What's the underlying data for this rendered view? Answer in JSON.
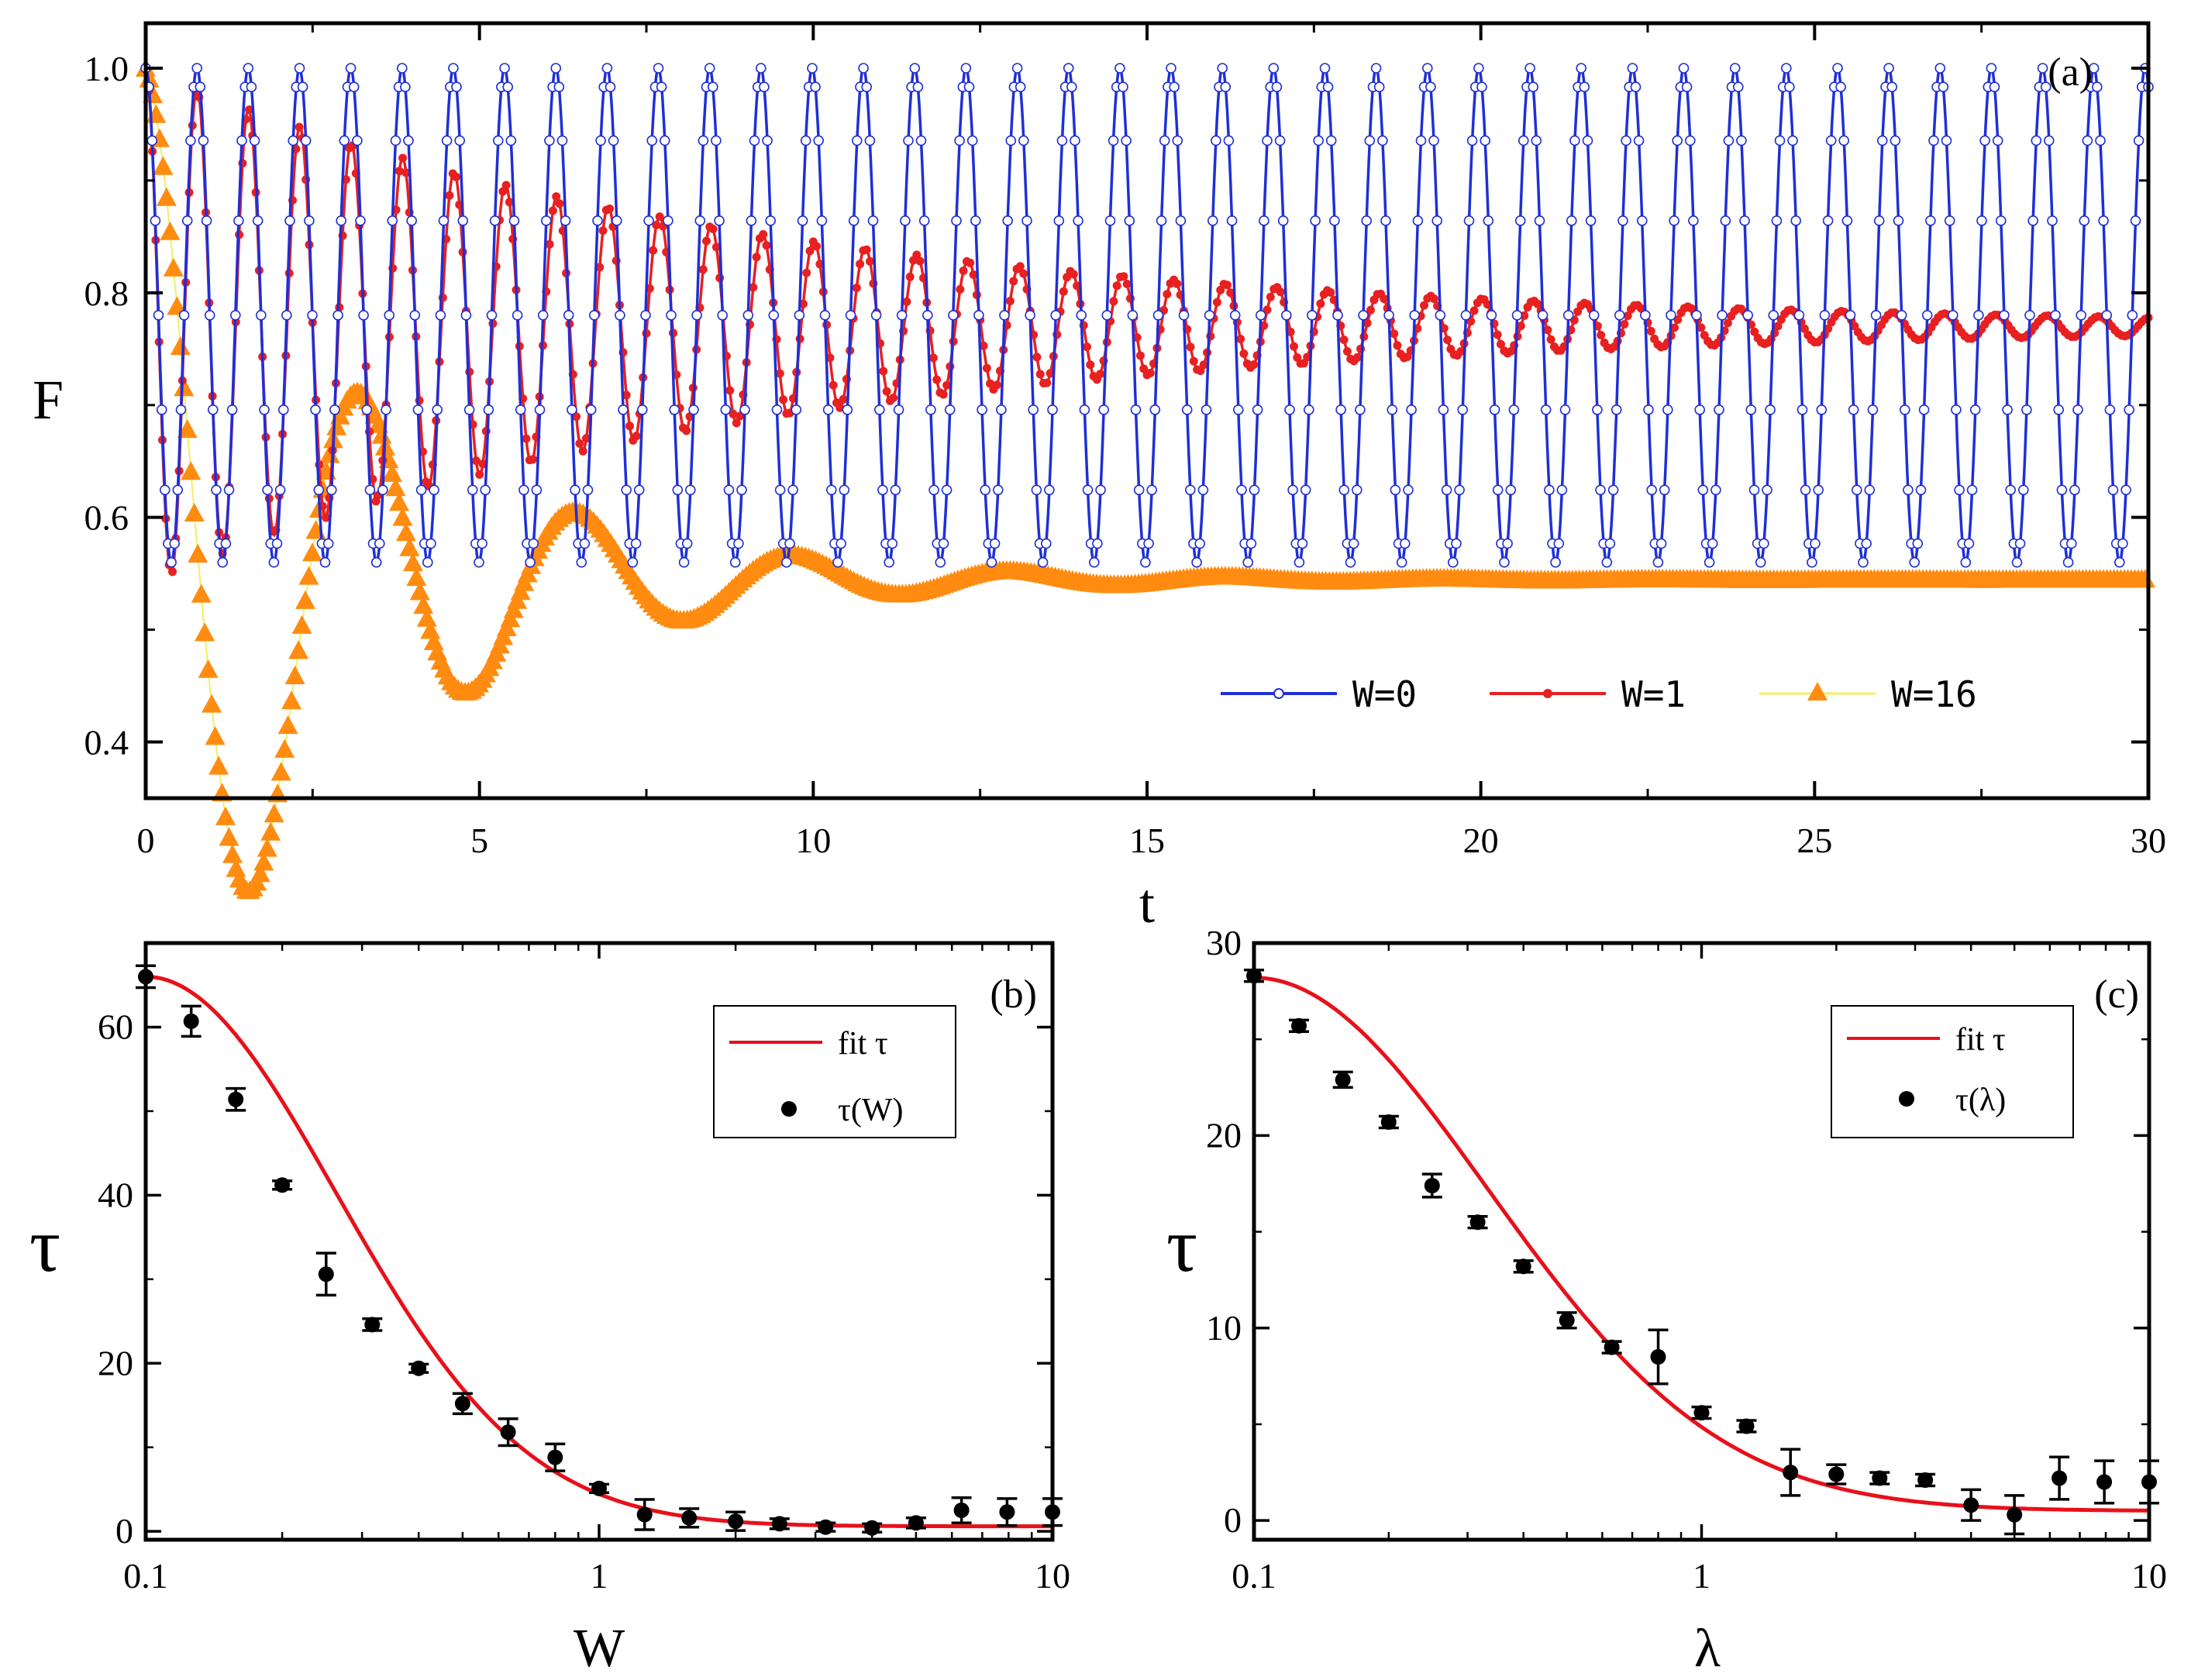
{
  "chart_data": [
    {
      "panel": "a",
      "type": "line",
      "panel_label": "(a)",
      "xlabel": "t",
      "ylabel": "F",
      "xlim": [
        0,
        30
      ],
      "ylim": [
        0.35,
        1.04
      ],
      "x_ticks": [
        0,
        5,
        10,
        15,
        20,
        25,
        30
      ],
      "y_ticks": [
        0.4,
        0.6,
        0.8,
        1.0
      ],
      "y_tick_labels": [
        "0.4",
        "0.6",
        "0.8",
        "1.0"
      ],
      "legend_position": "bottom-right",
      "series": [
        {
          "name": "W=0",
          "label": "W=0",
          "color": "#1f2fd6",
          "marker": "open-circle",
          "model": {
            "kind": "undamped-cos",
            "center": 0.78,
            "amplitude": 0.22,
            "period": 0.768,
            "t_max": 30
          }
        },
        {
          "name": "W=1",
          "label": "W=1",
          "color": "#e82020",
          "marker": "dot",
          "model": {
            "kind": "damped-cos",
            "start": 1.0,
            "center": 0.77,
            "amplitude": 0.23,
            "period": 0.77,
            "decay": 9.0,
            "t_max": 30
          }
        },
        {
          "name": "W=16",
          "label": "W=16",
          "color": "#ff8c10",
          "line_color": "#f3ee60",
          "marker": "triangle",
          "model": {
            "kind": "damped-cos",
            "start": 1.0,
            "center": 0.545,
            "amplitude": 0.455,
            "period": 3.25,
            "decay": 3.2,
            "t_max": 30
          }
        }
      ]
    },
    {
      "panel": "b",
      "type": "scatter",
      "panel_label": "(b)",
      "xlabel": "W",
      "ylabel": "τ",
      "xscale": "log",
      "xlim": [
        0.1,
        10
      ],
      "ylim": [
        -1,
        70
      ],
      "x_ticks": [
        0.1,
        1,
        10
      ],
      "x_tick_labels": [
        "0.1",
        "1",
        "10"
      ],
      "y_ticks": [
        0,
        20,
        40,
        60
      ],
      "y_tick_labels": [
        "0",
        "20",
        "40",
        "60"
      ],
      "legend_position": "top-right",
      "fit_label": "fit τ",
      "points_label": "τ(W)",
      "fit_color": "#e8101a",
      "fit_model": {
        "kind": "gaussian-log",
        "amplitude": 66.0,
        "offset": 0.6,
        "sigma": 0.42,
        "x0": 0.1
      },
      "x": [
        0.1,
        0.126,
        0.158,
        0.2,
        0.25,
        0.316,
        0.4,
        0.5,
        0.63,
        0.8,
        1.0,
        1.26,
        1.58,
        2.0,
        2.5,
        3.16,
        4.0,
        5.0,
        6.3,
        7.94,
        10.0
      ],
      "y": [
        66.0,
        60.7,
        51.4,
        41.2,
        30.6,
        24.6,
        19.4,
        15.2,
        11.8,
        8.8,
        5.1,
        2.0,
        1.6,
        1.2,
        0.9,
        0.5,
        0.4,
        1.0,
        2.5,
        2.3,
        2.3
      ],
      "err": [
        1.3,
        1.8,
        1.3,
        0.5,
        2.5,
        0.7,
        0.5,
        1.2,
        1.6,
        1.6,
        0.5,
        1.8,
        1.1,
        1.1,
        0.6,
        0.5,
        0.5,
        0.6,
        1.5,
        1.6,
        1.6
      ]
    },
    {
      "panel": "c",
      "type": "scatter",
      "panel_label": "(c)",
      "xlabel": "λ",
      "ylabel": "τ",
      "xscale": "log",
      "xlim": [
        0.1,
        10
      ],
      "ylim": [
        -1,
        30
      ],
      "x_ticks": [
        0.1,
        1,
        10
      ],
      "x_tick_labels": [
        "0.1",
        "1",
        "10"
      ],
      "y_ticks": [
        0,
        10,
        20,
        30
      ],
      "y_tick_labels": [
        "0",
        "10",
        "20",
        "30"
      ],
      "legend_position": "top-right",
      "fit_label": "fit τ",
      "points_label": "τ(λ)",
      "fit_color": "#e8101a",
      "fit_model": {
        "kind": "gaussian-log",
        "amplitude": 28.2,
        "offset": 0.5,
        "sigma": 0.52,
        "x0": 0.1
      },
      "x": [
        0.1,
        0.126,
        0.158,
        0.2,
        0.25,
        0.316,
        0.4,
        0.5,
        0.63,
        0.8,
        1.0,
        1.26,
        1.58,
        2.0,
        2.5,
        3.16,
        4.0,
        5.0,
        6.3,
        7.94,
        10.0
      ],
      "y": [
        28.3,
        25.7,
        22.9,
        20.7,
        17.4,
        15.5,
        13.2,
        10.4,
        9.0,
        8.5,
        5.6,
        4.9,
        2.5,
        2.4,
        2.2,
        2.1,
        0.8,
        0.3,
        2.2,
        2.0,
        2.0
      ],
      "err": [
        0.3,
        0.3,
        0.4,
        0.3,
        0.6,
        0.3,
        0.3,
        0.4,
        0.3,
        1.4,
        0.3,
        0.3,
        1.2,
        0.5,
        0.3,
        0.3,
        0.8,
        1.0,
        1.1,
        1.1,
        1.1
      ]
    }
  ]
}
